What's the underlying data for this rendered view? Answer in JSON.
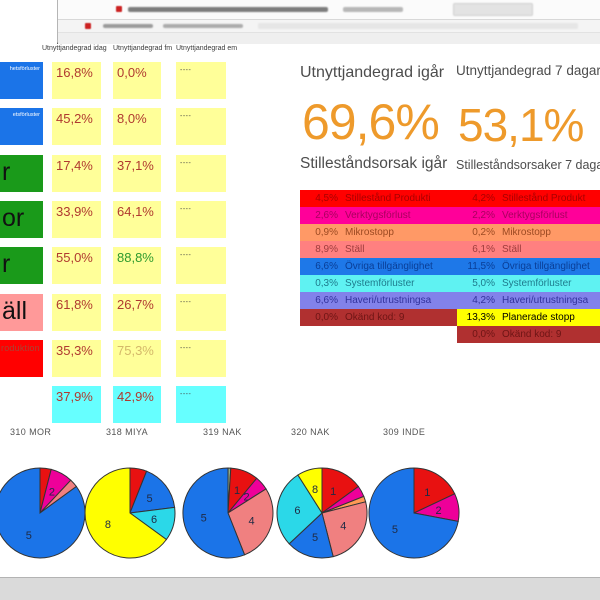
{
  "colors": {
    "accent_orange": "#EE9A2B",
    "cell_yellow": "#FFFF99",
    "cell_cyan": "#66FFFF",
    "cell_blue": "#1B74E8",
    "cell_green": "#1A9A1A",
    "cell_pink": "#FF9999",
    "cell_red": "#FF0000"
  },
  "table": {
    "headers": [
      "Utnyttjandegrad idag",
      "Utnyttjandegrad fm",
      "Utnyttjandegrad em"
    ],
    "rows": [
      {
        "label": {
          "text": "hetsförluster",
          "bg": "#1B74E8",
          "fg": "#FFFFFF",
          "size": "xs"
        },
        "cells": [
          {
            "text": "16,8%",
            "bg": "#FFFF99",
            "fg": "#B03A30"
          },
          {
            "text": "0,0%",
            "bg": "#FFFF99",
            "fg": "#B03A30"
          },
          {
            "text": "----",
            "bg": "#FFFF99",
            "fg": "#444444",
            "dash": true
          }
        ]
      },
      {
        "label": {
          "text": "etsförluster",
          "bg": "#1B74E8",
          "fg": "#FFFFFF",
          "size": "xs"
        },
        "cells": [
          {
            "text": "45,2%",
            "bg": "#FFFF99",
            "fg": "#B03A30"
          },
          {
            "text": "8,0%",
            "bg": "#FFFF99",
            "fg": "#B03A30"
          },
          {
            "text": "----",
            "bg": "#FFFF99",
            "fg": "#444444",
            "dash": true
          }
        ]
      },
      {
        "label": {
          "text": "r",
          "bg": "#1A9A1A",
          "fg": "#111111",
          "size": "xl"
        },
        "cells": [
          {
            "text": "17,4%",
            "bg": "#FFFF99",
            "fg": "#B03A30"
          },
          {
            "text": "37,1%",
            "bg": "#FFFF99",
            "fg": "#B03A30"
          },
          {
            "text": "----",
            "bg": "#FFFF99",
            "fg": "#444444",
            "dash": true
          }
        ]
      },
      {
        "label": {
          "text": "or",
          "bg": "#1A9A1A",
          "fg": "#111111",
          "size": "xl"
        },
        "cells": [
          {
            "text": "33,9%",
            "bg": "#FFFF99",
            "fg": "#B03A30"
          },
          {
            "text": "64,1%",
            "bg": "#FFFF99",
            "fg": "#B03A30"
          },
          {
            "text": "----",
            "bg": "#FFFF99",
            "fg": "#444444",
            "dash": true
          }
        ]
      },
      {
        "label": {
          "text": "r",
          "bg": "#1A9A1A",
          "fg": "#111111",
          "size": "xl"
        },
        "cells": [
          {
            "text": "55,0%",
            "bg": "#FFFF99",
            "fg": "#B03A30"
          },
          {
            "text": "88,8%",
            "bg": "#FFFF99",
            "fg": "#2E9B2E"
          },
          {
            "text": "----",
            "bg": "#FFFF99",
            "fg": "#444444",
            "dash": true
          }
        ]
      },
      {
        "label": {
          "text": "äll",
          "bg": "#FF9999",
          "fg": "#111111",
          "size": "xl"
        },
        "cells": [
          {
            "text": "61,8%",
            "bg": "#FFFF99",
            "fg": "#B03A30"
          },
          {
            "text": "26,7%",
            "bg": "#FFFF99",
            "fg": "#B03A30"
          },
          {
            "text": "----",
            "bg": "#FFFF99",
            "fg": "#444444",
            "dash": true
          }
        ]
      },
      {
        "label": {
          "text": "roduktion",
          "bg": "#FF0000",
          "fg": "#A94434",
          "size": "s"
        },
        "cells": [
          {
            "text": "35,3%",
            "bg": "#FFFF99",
            "fg": "#B03A30"
          },
          {
            "text": "75,3%",
            "bg": "#FFFF99",
            "fg": "#D4B86A"
          },
          {
            "text": "----",
            "bg": "#FFFF99",
            "fg": "#444444",
            "dash": true
          }
        ]
      },
      {
        "label": null,
        "cells": [
          {
            "text": "37,9%",
            "bg": "#66FFFF",
            "fg": "#B03A30"
          },
          {
            "text": "42,9%",
            "bg": "#66FFFF",
            "fg": "#B03A30"
          },
          {
            "text": "----",
            "bg": "#66FFFF",
            "fg": "#444444",
            "dash": true
          }
        ]
      }
    ]
  },
  "kpis": {
    "yesterday": {
      "title": "Utnyttjandegrad igår",
      "value": "69,6%",
      "subtitle": "Stilleståndsorsak igår"
    },
    "week": {
      "title": "Utnyttjandegrad 7 dagar",
      "value": "53,1%",
      "subtitle": "Stilleståndsorsaker 7 dagar"
    }
  },
  "legends": {
    "yesterday": [
      {
        "pct": "4,5%",
        "label": "Stillestånd Produkti",
        "bg": "#FF0000",
        "fg": "#A80000"
      },
      {
        "pct": "2,6%",
        "label": "Verktygsförlust",
        "bg": "#FF0099",
        "fg": "#A8005E"
      },
      {
        "pct": "0,9%",
        "label": "Mikrostopp",
        "bg": "#FF9966",
        "fg": "#9C4A22"
      },
      {
        "pct": "8,9%",
        "label": "Ställ",
        "bg": "#FF8080",
        "fg": "#9E3D3D"
      },
      {
        "pct": "6,6%",
        "label": "Övriga tillgänglighet",
        "bg": "#1E78E8",
        "fg": "#0A3E96"
      },
      {
        "pct": "0,3%",
        "label": "Systemförluster",
        "bg": "#5FF2F2",
        "fg": "#1E7A8C"
      },
      {
        "pct": "6,6%",
        "label": "Haveri/utrustningsa",
        "bg": "#8282EA",
        "fg": "#32329B"
      },
      {
        "pct": "0,0%",
        "label": "Okänd kod: 9",
        "bg": "#B03030",
        "fg": "#6E1515"
      }
    ],
    "week": [
      {
        "pct": "4,2%",
        "label": "Stillestånd Produkt",
        "bg": "#FF0000",
        "fg": "#A80000"
      },
      {
        "pct": "2,2%",
        "label": "Verktygsförlust",
        "bg": "#FF0099",
        "fg": "#A8005E"
      },
      {
        "pct": "0,2%",
        "label": "Mikrostopp",
        "bg": "#FF9966",
        "fg": "#9C4A22"
      },
      {
        "pct": "6,1%",
        "label": "Ställ",
        "bg": "#FF8080",
        "fg": "#9E3D3D"
      },
      {
        "pct": "11,5%",
        "label": "Övriga tillgänglighet",
        "bg": "#1E78E8",
        "fg": "#0A3E96"
      },
      {
        "pct": "5,0%",
        "label": "Systemförluster",
        "bg": "#5FF2F2",
        "fg": "#1E7A8C"
      },
      {
        "pct": "4,2%",
        "label": "Haveri/utrustningsa",
        "bg": "#8282EA",
        "fg": "#32329B"
      },
      {
        "pct": "13,3%",
        "label": "Planerade stopp",
        "bg": "#FFFF00",
        "fg": "#000000"
      },
      {
        "pct": "0,0%",
        "label": "Okänd kod: 9",
        "bg": "#B03030",
        "fg": "#6E1515"
      }
    ]
  },
  "chart_data": [
    {
      "type": "pie",
      "title": "310 MOR",
      "slices": [
        {
          "label": "",
          "pct": 4,
          "color": "#E81111"
        },
        {
          "label": "2",
          "pct": 8,
          "color": "#EE0099"
        },
        {
          "label": "",
          "pct": 3,
          "color": "#F08080"
        },
        {
          "label": "5",
          "pct": 85,
          "color": "#1B74E8"
        }
      ]
    },
    {
      "type": "pie",
      "title": "318 MIYA",
      "slices": [
        {
          "label": "",
          "pct": 6,
          "color": "#E81111"
        },
        {
          "label": "5",
          "pct": 17,
          "color": "#1B74E8"
        },
        {
          "label": "6",
          "pct": 12,
          "color": "#2BD8E8"
        },
        {
          "label": "8",
          "pct": 65,
          "color": "#FFFF00"
        }
      ]
    },
    {
      "type": "pie",
      "title": "319 NAK",
      "slices": [
        {
          "label": "",
          "pct": 1,
          "color": "#8FAE8F"
        },
        {
          "label": "1",
          "pct": 10,
          "color": "#E81111"
        },
        {
          "label": "2",
          "pct": 5,
          "color": "#EE0099"
        },
        {
          "label": "4",
          "pct": 28,
          "color": "#F08080"
        },
        {
          "label": "5",
          "pct": 56,
          "color": "#1B74E8"
        }
      ]
    },
    {
      "type": "pie",
      "title": "320 NAK",
      "slices": [
        {
          "label": "1",
          "pct": 15,
          "color": "#E81111"
        },
        {
          "label": "",
          "pct": 4,
          "color": "#EE0099"
        },
        {
          "label": "",
          "pct": 2,
          "color": "#FF9955"
        },
        {
          "label": "4",
          "pct": 25,
          "color": "#F08080"
        },
        {
          "label": "5",
          "pct": 17,
          "color": "#1B74E8"
        },
        {
          "label": "6",
          "pct": 28,
          "color": "#2BD8E8"
        },
        {
          "label": "8",
          "pct": 9,
          "color": "#FFFF00"
        }
      ]
    },
    {
      "type": "pie",
      "title": "309 INDE",
      "slices": [
        {
          "label": "1",
          "pct": 18,
          "color": "#E81111"
        },
        {
          "label": "2",
          "pct": 10,
          "color": "#EE0099"
        },
        {
          "label": "5",
          "pct": 72,
          "color": "#1B74E8"
        }
      ]
    }
  ]
}
